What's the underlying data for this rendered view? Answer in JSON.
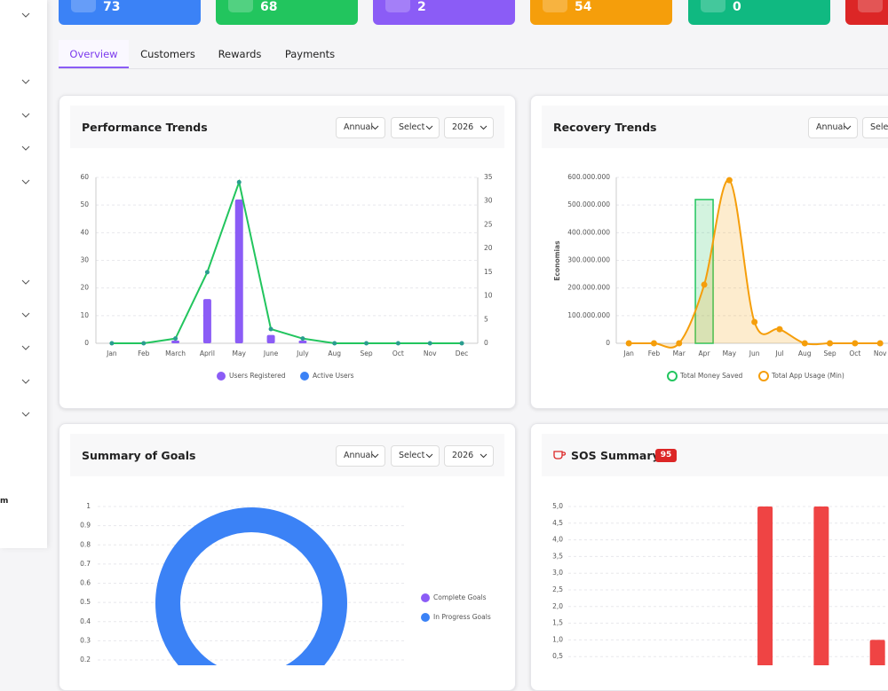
{
  "sidebar": {
    "footer_text": "m"
  },
  "stat_cards": [
    73,
    68,
    2,
    54,
    0
  ],
  "tabs": [
    "Overview",
    "Customers",
    "Rewards",
    "Payments"
  ],
  "panels": [
    {
      "title": "Performance Trends",
      "filters": [
        "Annual",
        "Select",
        "2026"
      ]
    },
    {
      "title": "Recovery Trends",
      "filters": [
        "Annual",
        "Select"
      ]
    },
    {
      "title": "Summary of Goals",
      "filters": [
        "Annual",
        "Select",
        "2026"
      ]
    },
    {
      "title": "SOS Summary",
      "badge": 95
    }
  ],
  "chart_data": [
    {
      "type": "combo",
      "categories": [
        "Jan",
        "Feb",
        "March",
        "April",
        "May",
        "June",
        "July",
        "Aug",
        "Sep",
        "Oct",
        "Nov",
        "Dec"
      ],
      "series": [
        {
          "name": "Users Registered",
          "type": "bar",
          "color": "#8b5cf6",
          "values": [
            0,
            0,
            1,
            16,
            52,
            3,
            1,
            0,
            0,
            0,
            0,
            0
          ]
        },
        {
          "name": "Active Users",
          "type": "line",
          "axis": "y2",
          "color": "#22c55e",
          "marker_color": "#2a9d8f",
          "legend_color": "#3b82f6",
          "values": [
            0,
            0,
            1,
            15,
            34,
            3,
            1,
            0,
            0,
            0,
            0,
            0
          ]
        }
      ],
      "ylim": [
        0,
        60
      ],
      "yticks": [
        0,
        10,
        20,
        30,
        40,
        50,
        60
      ],
      "y2lim": [
        0,
        35
      ],
      "y2ticks": [
        0,
        5,
        10,
        15,
        20,
        25,
        30,
        35
      ],
      "grid": true,
      "legend": "bottom"
    },
    {
      "type": "combo",
      "categories": [
        "Jan",
        "Feb",
        "Mar",
        "Apr",
        "May",
        "Jun",
        "Jul",
        "Aug",
        "Sep",
        "Oct",
        "Nov"
      ],
      "ylabel": "Economias",
      "series": [
        {
          "name": "Total Money Saved",
          "type": "bar",
          "color": "#22c55e",
          "values": [
            0,
            0,
            0,
            520000000,
            0,
            0,
            0,
            0,
            0,
            0,
            0
          ]
        },
        {
          "name": "Total App Usage (Min)",
          "type": "line",
          "smooth": true,
          "area": true,
          "color": "#f59e0b",
          "values": [
            0,
            0,
            0,
            212000000,
            590000000,
            77000000,
            51000000,
            0,
            0,
            0,
            0
          ]
        }
      ],
      "ylim": [
        0,
        600000000
      ],
      "yticks": [
        0,
        {
          "value": 100000000,
          "label": "100.000.000"
        },
        {
          "value": 200000000,
          "label": "200.000.000"
        },
        {
          "value": 300000000,
          "label": "300.000.000"
        },
        {
          "value": 400000000,
          "label": "400.000.000"
        },
        {
          "value": 500000000,
          "label": "500.000.000"
        },
        {
          "value": 600000000,
          "label": "600.000.000"
        }
      ],
      "grid": true,
      "legend": "bottom",
      "legend_style": "ring"
    },
    {
      "type": "doughnut",
      "categories": [
        "Complete Goals",
        "In Progress Goals"
      ],
      "values": [
        0,
        1
      ],
      "colors": [
        "#8b5cf6",
        "#3b82f6"
      ],
      "ylim": [
        0.2,
        1
      ],
      "yticks": [
        0.2,
        0.3,
        0.4,
        0.5,
        0.6,
        0.7,
        0.8,
        0.9,
        1
      ],
      "grid": true,
      "legend": "right"
    },
    {
      "type": "bar",
      "categories": [
        null,
        null,
        null,
        null,
        null,
        null
      ],
      "values": [
        0,
        0,
        0,
        5,
        5,
        1
      ],
      "color": "#ef4444",
      "ylim": [
        0,
        5
      ],
      "yticks": [
        {
          "value": 0.5,
          "label": "0,5"
        },
        {
          "value": 1,
          "label": "1,0"
        },
        {
          "value": 1.5,
          "label": "1,5"
        },
        {
          "value": 2,
          "label": "2,0"
        },
        {
          "value": 2.5,
          "label": "2,5"
        },
        {
          "value": 3,
          "label": "3,0"
        },
        {
          "value": 3.5,
          "label": "3,5"
        },
        {
          "value": 4,
          "label": "4,0"
        },
        {
          "value": 4.5,
          "label": "4,5"
        },
        {
          "value": 5,
          "label": "5,0"
        }
      ],
      "grid": true
    }
  ]
}
